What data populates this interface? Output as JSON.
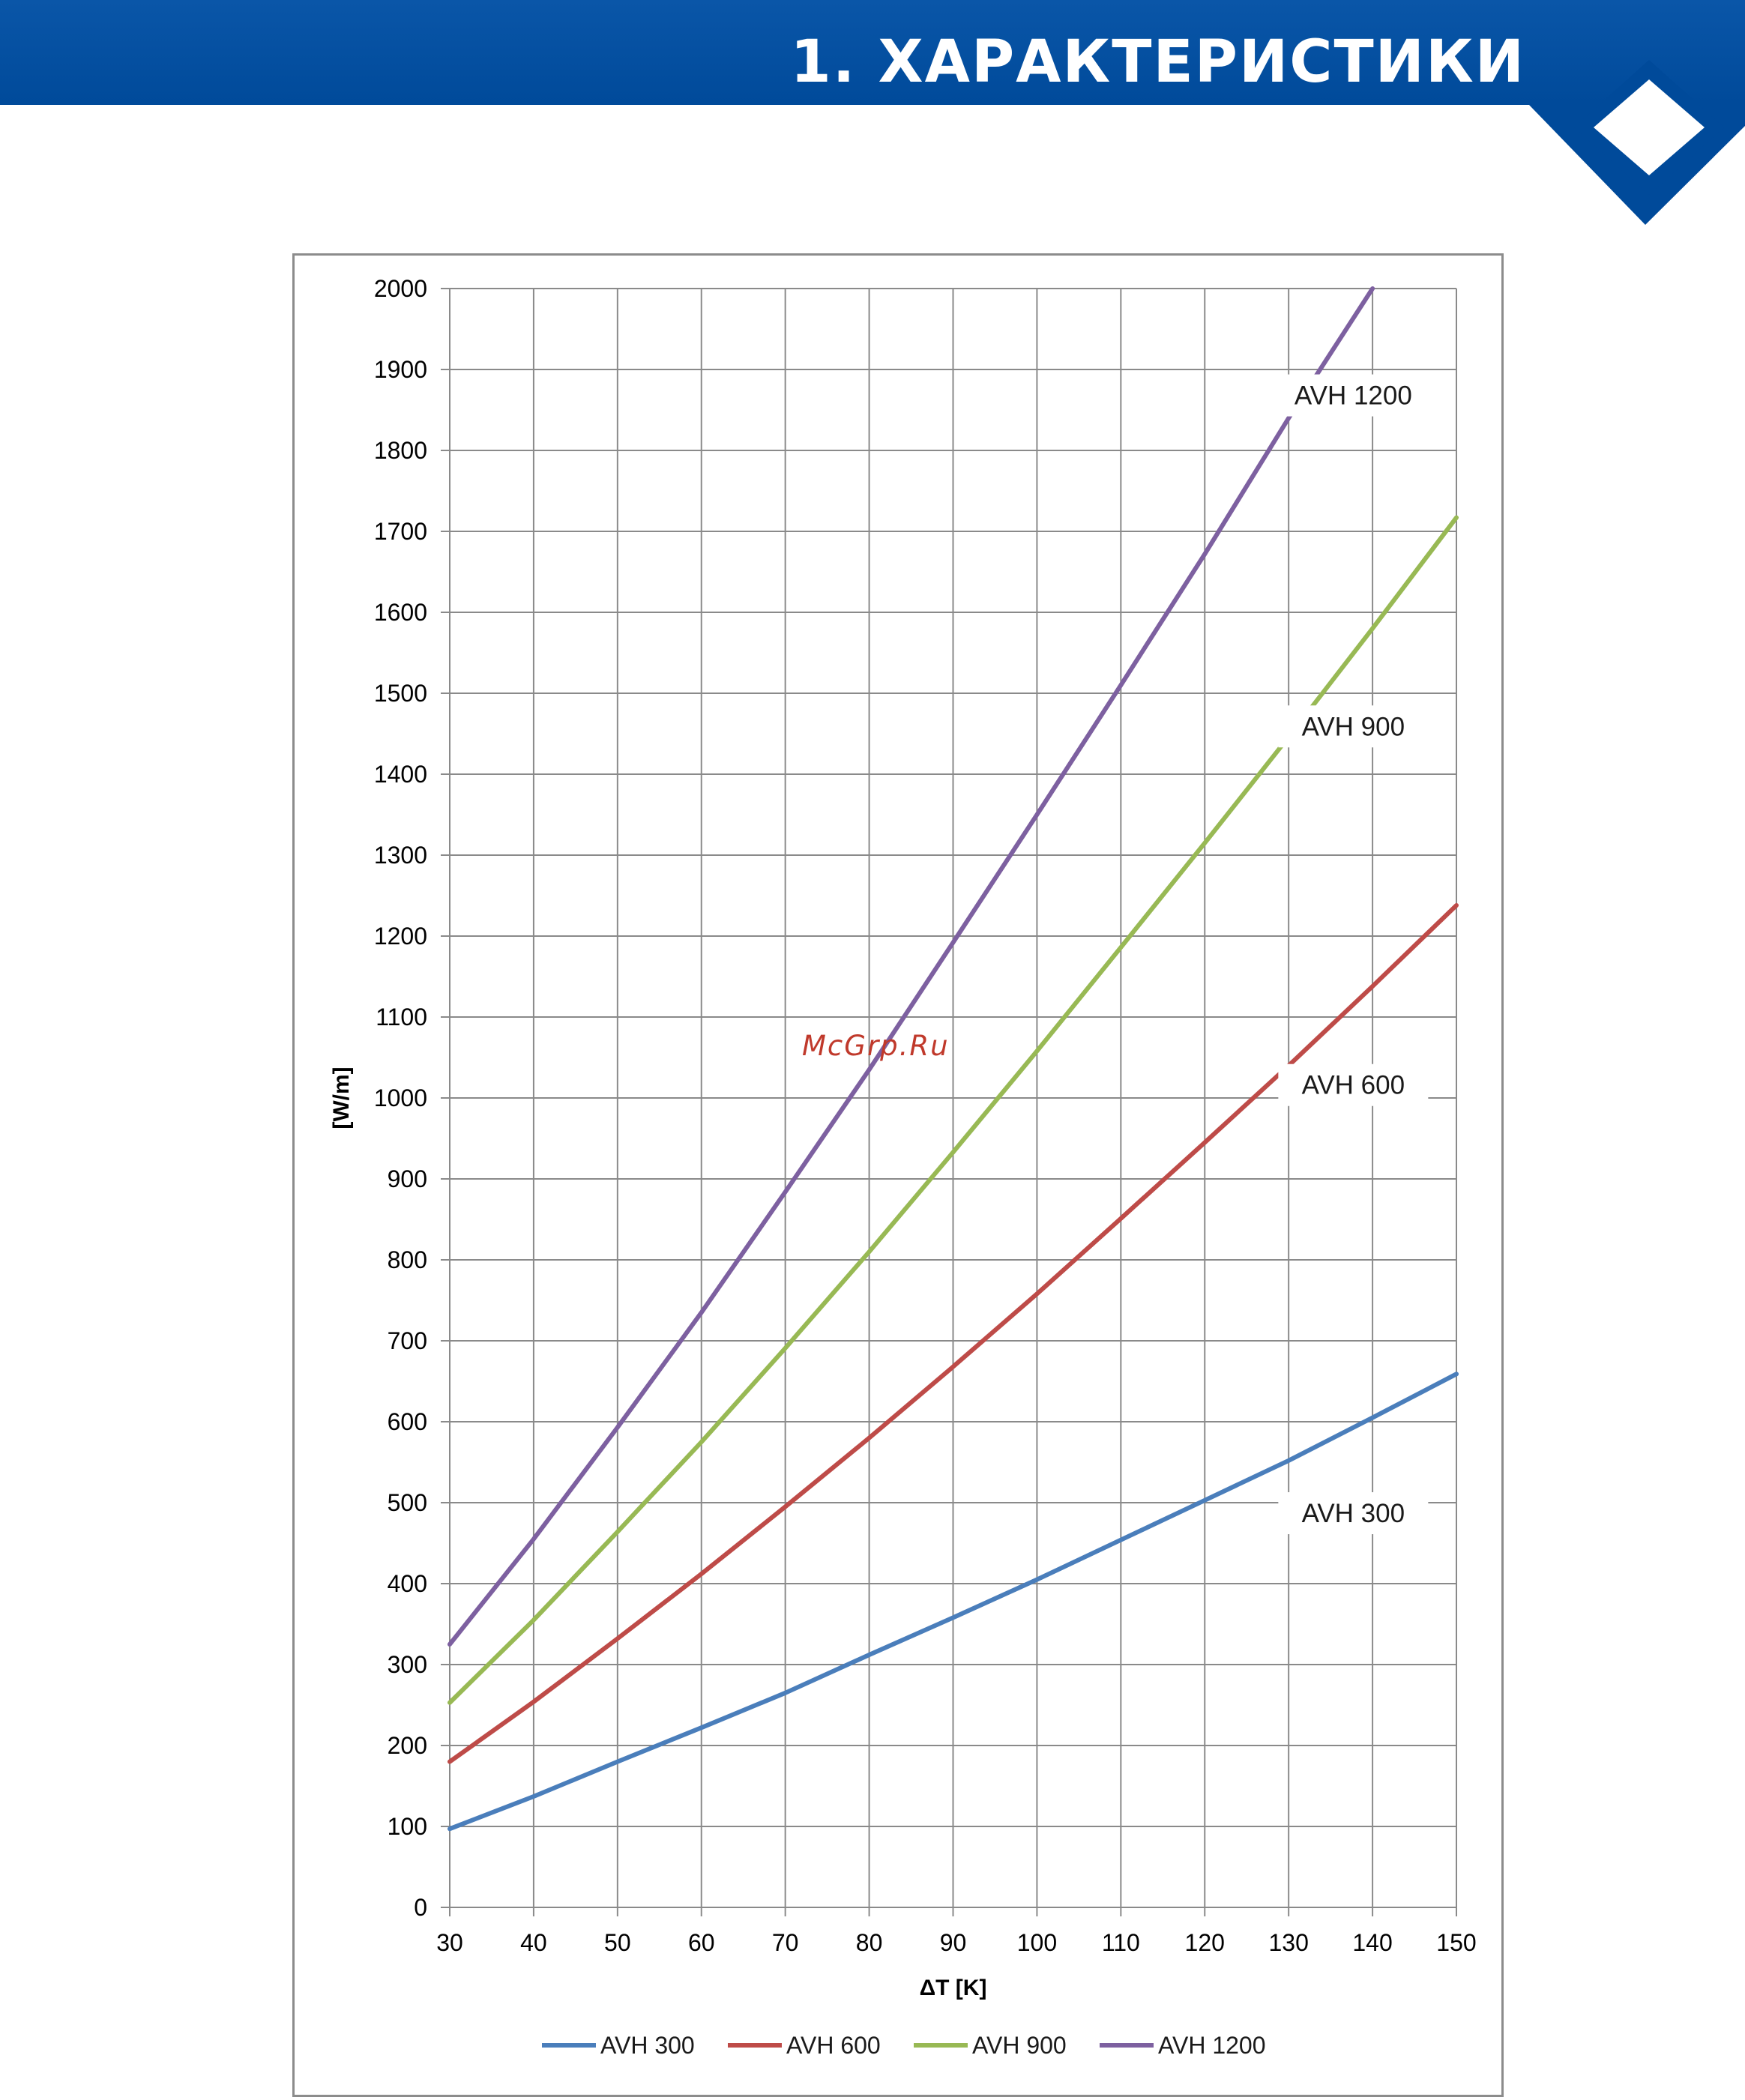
{
  "header": {
    "title": "1. ХАРАКТЕРИСТИКИ",
    "band_color": "#0050a3"
  },
  "watermark": "McGrp.Ru",
  "chart_data": {
    "type": "line",
    "xlabel": "ΔT [K]",
    "ylabel": "[W/m]",
    "xlim": [
      30,
      150
    ],
    "ylim": [
      0,
      2000
    ],
    "x_ticks": [
      30,
      40,
      50,
      60,
      70,
      80,
      90,
      100,
      110,
      120,
      130,
      140,
      150
    ],
    "y_ticks": [
      0,
      100,
      200,
      300,
      400,
      500,
      600,
      700,
      800,
      900,
      1000,
      1100,
      1200,
      1300,
      1400,
      1500,
      1600,
      1700,
      1800,
      1900,
      2000
    ],
    "grid": true,
    "legend_position": "bottom",
    "series": [
      {
        "name": "AVH 300",
        "color": "#4a7ebb",
        "label_at": [
          131,
          487
        ],
        "x": [
          30,
          40,
          50,
          60,
          70,
          80,
          90,
          100,
          110,
          120,
          130,
          140,
          150
        ],
        "y": [
          97,
          137,
          180,
          222,
          265,
          312,
          358,
          405,
          454,
          503,
          552,
          605,
          659
        ]
      },
      {
        "name": "AVH 600",
        "color": "#be4b48",
        "label_at": [
          131,
          1016
        ],
        "x": [
          30,
          40,
          50,
          60,
          70,
          80,
          90,
          100,
          110,
          120,
          130,
          140,
          150
        ],
        "y": [
          180,
          254,
          332,
          412,
          495,
          580,
          668,
          758,
          851,
          945,
          1040,
          1138,
          1238
        ]
      },
      {
        "name": "AVH 900",
        "color": "#98b954",
        "label_at": [
          131,
          1459
        ],
        "x": [
          30,
          40,
          50,
          60,
          70,
          80,
          90,
          100,
          110,
          120,
          130,
          140,
          150
        ],
        "y": [
          253,
          355,
          464,
          575,
          691,
          810,
          933,
          1058,
          1186,
          1315,
          1446,
          1580,
          1717
        ]
      },
      {
        "name": "AVH 1200",
        "color": "#7d60a0",
        "label_at": [
          131,
          1868
        ],
        "x": [
          30,
          40,
          50,
          60,
          70,
          80,
          90,
          100,
          110,
          120,
          130,
          140,
          150
        ],
        "y": [
          325,
          455,
          593,
          735,
          884,
          1035,
          1192,
          1350,
          1510,
          1672,
          1840,
          2000,
          null
        ]
      }
    ]
  }
}
